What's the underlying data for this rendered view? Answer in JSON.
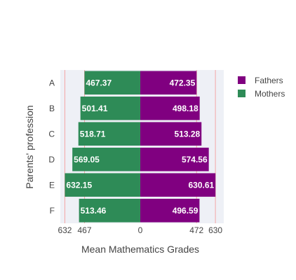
{
  "chart_data": {
    "type": "bar",
    "orientation": "horizontal-diverging",
    "categories": [
      "A",
      "B",
      "C",
      "D",
      "E",
      "F"
    ],
    "series": [
      {
        "name": "Fathers",
        "color": "#800080",
        "side": "right",
        "values": [
          472.35,
          498.18,
          513.28,
          574.56,
          630.61,
          496.59
        ]
      },
      {
        "name": "Mothers",
        "color": "#2e8b57",
        "side": "left",
        "values": [
          467.37,
          501.41,
          518.71,
          569.05,
          632.15,
          513.46
        ]
      }
    ],
    "xlabel": "Mean Mathematics Grades",
    "ylabel": "Parents' profession",
    "xlim": [
      -670,
      700
    ],
    "x_ticks": [
      {
        "value": -632,
        "label": "632"
      },
      {
        "value": -467,
        "label": "467"
      },
      {
        "value": 0,
        "label": "0"
      },
      {
        "value": 472,
        "label": "472"
      },
      {
        "value": 630,
        "label": "630"
      }
    ],
    "reference_lines": [
      -632,
      -467,
      472,
      630
    ],
    "reference_line_color": "#f4a6a6",
    "plot_background": "#eef0f6",
    "legend_position": "top-right"
  }
}
